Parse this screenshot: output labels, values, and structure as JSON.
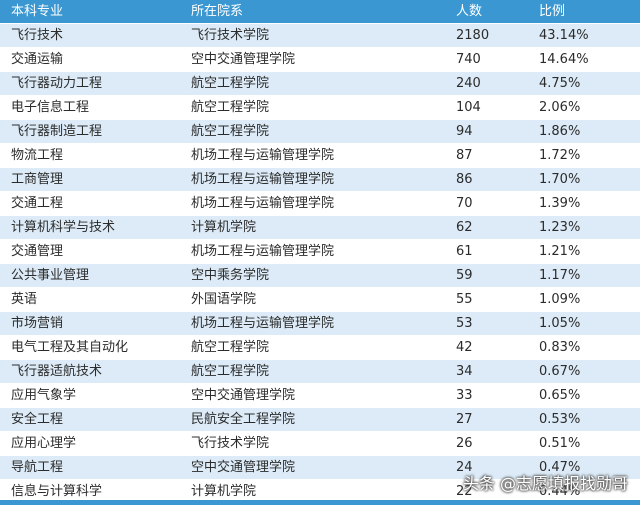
{
  "header": {
    "major": "本科专业",
    "college": "所在院系",
    "count": "人数",
    "ratio": "比例"
  },
  "rows": [
    {
      "major": "飞行技术",
      "college": "飞行技术学院",
      "count": "2180",
      "ratio": "43.14%"
    },
    {
      "major": "交通运输",
      "college": "空中交通管理学院",
      "count": "740",
      "ratio": "14.64%"
    },
    {
      "major": "飞行器动力工程",
      "college": "航空工程学院",
      "count": "240",
      "ratio": "4.75%"
    },
    {
      "major": "电子信息工程",
      "college": "航空工程学院",
      "count": "104",
      "ratio": "2.06%"
    },
    {
      "major": "飞行器制造工程",
      "college": "航空工程学院",
      "count": "94",
      "ratio": "1.86%"
    },
    {
      "major": "物流工程",
      "college": "机场工程与运输管理学院",
      "count": "87",
      "ratio": "1.72%"
    },
    {
      "major": "工商管理",
      "college": "机场工程与运输管理学院",
      "count": "86",
      "ratio": "1.70%"
    },
    {
      "major": "交通工程",
      "college": "机场工程与运输管理学院",
      "count": "70",
      "ratio": "1.39%"
    },
    {
      "major": "计算机科学与技术",
      "college": "计算机学院",
      "count": "62",
      "ratio": "1.23%"
    },
    {
      "major": "交通管理",
      "college": "机场工程与运输管理学院",
      "count": "61",
      "ratio": "1.21%"
    },
    {
      "major": "公共事业管理",
      "college": "空中乘务学院",
      "count": "59",
      "ratio": "1.17%"
    },
    {
      "major": "英语",
      "college": "外国语学院",
      "count": "55",
      "ratio": "1.09%"
    },
    {
      "major": "市场营销",
      "college": "机场工程与运输管理学院",
      "count": "53",
      "ratio": "1.05%"
    },
    {
      "major": "电气工程及其自动化",
      "college": "航空工程学院",
      "count": "42",
      "ratio": "0.83%"
    },
    {
      "major": "飞行器适航技术",
      "college": "航空工程学院",
      "count": "34",
      "ratio": "0.67%"
    },
    {
      "major": "应用气象学",
      "college": "空中交通管理学院",
      "count": "33",
      "ratio": "0.65%"
    },
    {
      "major": "安全工程",
      "college": "民航安全工程学院",
      "count": "27",
      "ratio": "0.53%"
    },
    {
      "major": "应用心理学",
      "college": "飞行技术学院",
      "count": "26",
      "ratio": "0.51%"
    },
    {
      "major": "导航工程",
      "college": "空中交通管理学院",
      "count": "24",
      "ratio": "0.47%"
    },
    {
      "major": "信息与计算科学",
      "college": "计算机学院",
      "count": "22",
      "ratio": "0.44%"
    }
  ],
  "watermark": "头条 @志愿填报找勋哥"
}
